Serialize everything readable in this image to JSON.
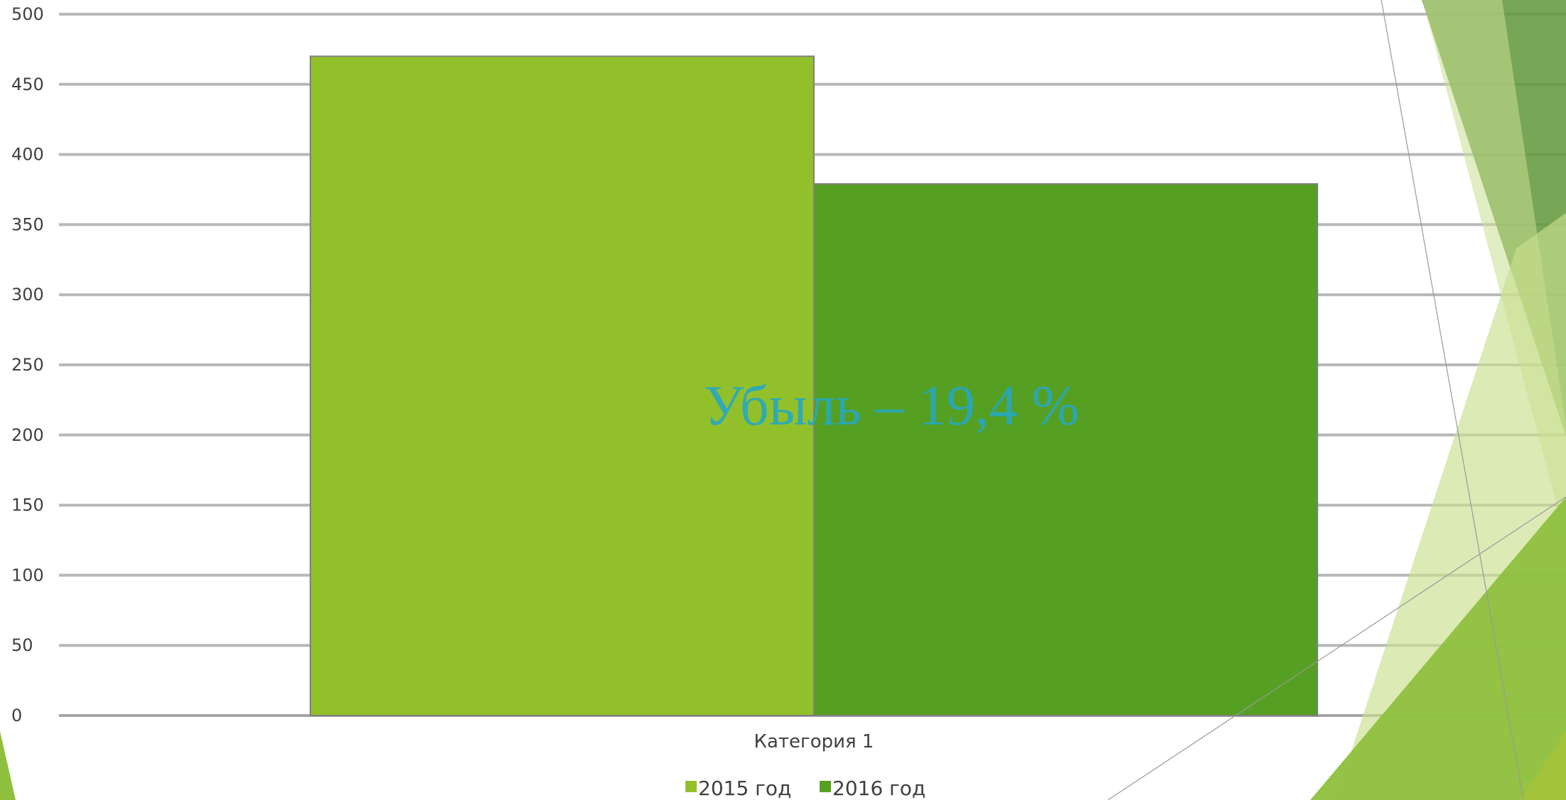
{
  "chart_data": {
    "type": "bar",
    "title": "",
    "xlabel": "",
    "ylabel": "",
    "categories": [
      "Категория 1"
    ],
    "series": [
      {
        "name": "2015 год",
        "values": [
          470
        ],
        "color": "#92c02a"
      },
      {
        "name": "2016 год",
        "values": [
          379
        ],
        "color": "#55a022"
      }
    ],
    "ylim": [
      0,
      500
    ],
    "yticks": [
      0,
      50,
      100,
      150,
      200,
      250,
      300,
      350,
      400,
      450,
      500
    ],
    "grid": true,
    "legend": "bottom",
    "annotation": "Убыль – 19,4 %"
  },
  "colors": {
    "grid": "#b8b8b8",
    "axis": "#a6a6a6",
    "bar_border": "#808080",
    "annotation": "#26a8c2",
    "deco_light": "#c9df8f",
    "deco_mid": "#8ec03e",
    "deco_dark": "#5f9838"
  }
}
